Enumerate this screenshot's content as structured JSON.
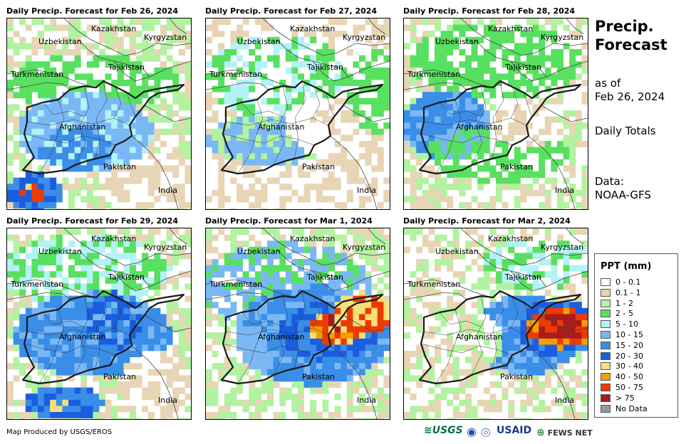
{
  "panels": [
    {
      "title": "Daily Precip. Forecast for Feb 26, 2024",
      "pattern": "feb26"
    },
    {
      "title": "Daily Precip. Forecast for Feb 27, 2024",
      "pattern": "feb27"
    },
    {
      "title": "Daily Precip. Forecast for Feb 28, 2024",
      "pattern": "feb28"
    },
    {
      "title": "Daily Precip. Forecast for Feb 29, 2024",
      "pattern": "feb29"
    },
    {
      "title": "Daily Precip. Forecast for Mar 1, 2024",
      "pattern": "mar1"
    },
    {
      "title": "Daily Precip. Forecast for Mar 2, 2024",
      "pattern": "mar2"
    }
  ],
  "map_labels": {
    "kazakhstan": "Kazakhstan",
    "kyrgyzstan": "Kyrgyzstan",
    "uzbekistan": "Uzbekistan",
    "tajikistan": "Tajikistan",
    "turkmenistan": "Turkmenistan",
    "afghanistan": "Afghanistan",
    "pakistan": "Pakistan",
    "india": "India"
  },
  "side": {
    "title": "Precip.\nForecast",
    "as_of": "as of\nFeb 26, 2024",
    "totals": "Daily Totals",
    "data_source": "Data:\nNOAA-GFS"
  },
  "legend": {
    "title": "PPT (mm)",
    "items": [
      {
        "label": "0 - 0.1",
        "color": "#ffffff"
      },
      {
        "label": "0.1 - 1",
        "color": "#e8d5b5"
      },
      {
        "label": "1 - 2",
        "color": "#b2f2a0"
      },
      {
        "label": "2 - 5",
        "color": "#58e060"
      },
      {
        "label": "5 - 10",
        "color": "#b3f2f5"
      },
      {
        "label": "10 - 15",
        "color": "#7ab8f5"
      },
      {
        "label": "15 - 20",
        "color": "#3a8ee8"
      },
      {
        "label": "20 - 30",
        "color": "#1a5ee0"
      },
      {
        "label": "30 - 40",
        "color": "#f5e07a"
      },
      {
        "label": "40 - 50",
        "color": "#f5a000"
      },
      {
        "label": "50 - 75",
        "color": "#ee3a00"
      },
      {
        "label": "> 75",
        "color": "#a81c1c"
      },
      {
        "label": "No Data",
        "color": "#999999"
      }
    ]
  },
  "credit": "Map Produced by USGS/EROS",
  "logos": {
    "usgs": "USGS",
    "usaid": "USAID",
    "fewsnet": "FEWS NET"
  }
}
